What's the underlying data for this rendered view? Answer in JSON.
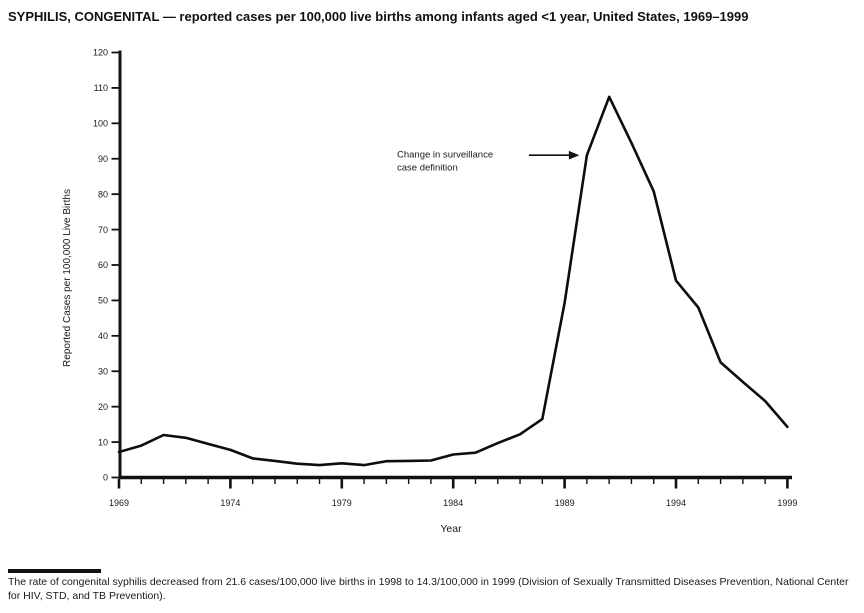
{
  "page_title": "SYPHILIS, CONGENITAL — reported cases per 100,000 live births among infants aged <1 year, United States, 1969–1999",
  "chart_data": {
    "type": "line",
    "title": "SYPHILIS, CONGENITAL — reported cases per 100,000 live births among infants aged <1 year, United States, 1969–1999",
    "xlabel": "Year",
    "ylabel": "Reported Cases per 100,000 Live Births",
    "xlim": [
      1969,
      1999
    ],
    "ylim": [
      0,
      120
    ],
    "ytick_step": 10,
    "xticks_major": [
      1969,
      1974,
      1979,
      1984,
      1989,
      1994,
      1999
    ],
    "xticks_minor_step": 1,
    "grid": false,
    "legend": "none",
    "line_color": "#0d0d0d",
    "x": [
      1969,
      1970,
      1971,
      1972,
      1973,
      1974,
      1975,
      1976,
      1977,
      1978,
      1979,
      1980,
      1981,
      1982,
      1983,
      1984,
      1985,
      1986,
      1987,
      1988,
      1989,
      1990,
      1991,
      1992,
      1993,
      1994,
      1995,
      1996,
      1997,
      1998,
      1999
    ],
    "values": [
      7.2,
      9.0,
      12.0,
      11.2,
      9.5,
      7.8,
      5.4,
      4.7,
      3.9,
      3.5,
      4.0,
      3.5,
      4.6,
      4.7,
      4.8,
      6.5,
      7.0,
      9.7,
      12.2,
      16.5,
      49.3,
      91.0,
      107.5,
      94.5,
      80.8,
      55.6,
      48.0,
      32.5,
      27.0,
      21.6,
      14.3
    ],
    "annotation": {
      "lines": [
        "Change in surveillance",
        "case definition"
      ],
      "arrow_points_to": {
        "year": 1990,
        "value": 91
      }
    }
  },
  "footer": {
    "text": "The rate of congenital syphilis decreased from 21.6 cases/100,000 live births in 1998 to 14.3/100,000 in 1999 (Division of Sexually Transmitted Diseases Prevention, National Center for HIV, STD, and TB Prevention)."
  }
}
